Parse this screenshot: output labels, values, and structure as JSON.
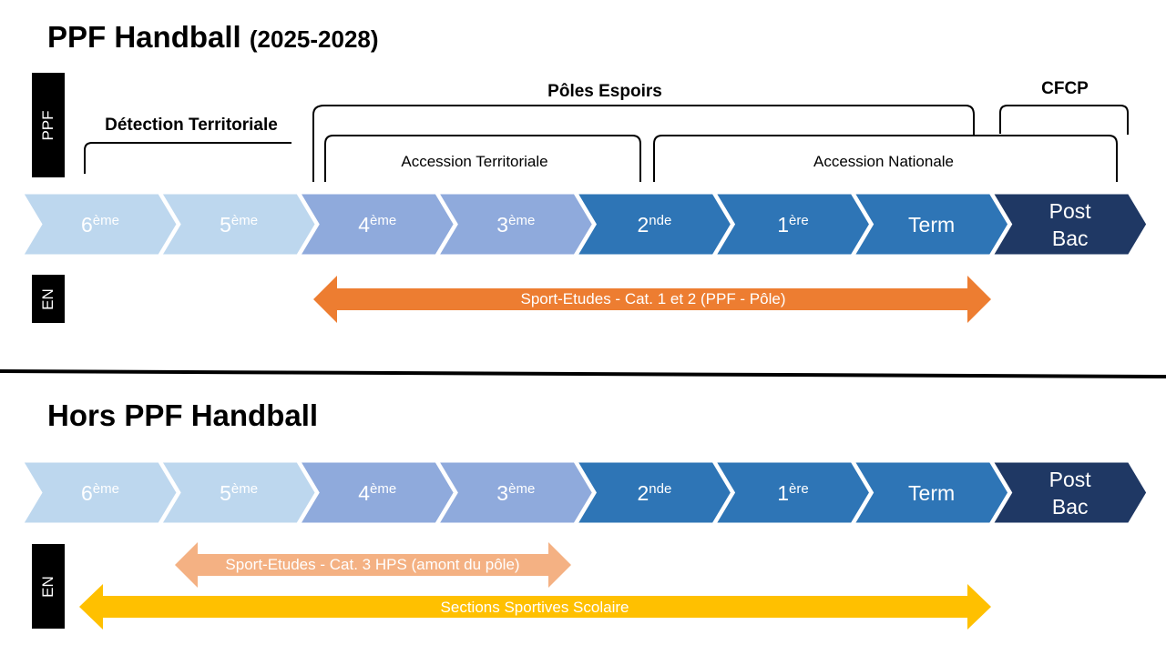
{
  "section1": {
    "title": "PPF Handball",
    "title_sub": "(2025-2028)",
    "sidebox_top": "PPF",
    "sidebox_bottom": "EN",
    "brackets": {
      "detection": "Détection Territoriale",
      "poles": "Pôles Espoirs",
      "cfcp": "CFCP",
      "accession_territoriale": "Accession Territoriale",
      "accession_nationale": "Accession Nationale"
    },
    "arrow_label": "Sport-Etudes  - Cat. 1 et 2 (PPF - Pôle)"
  },
  "section2": {
    "title": "Hors PPF Handball",
    "sidebox": "EN",
    "arrow1_label": "Sport-Etudes  - Cat. 3 HPS (amont du pôle)",
    "arrow2_label": "Sections Sportives Scolaire"
  },
  "grades": [
    {
      "main": "6",
      "sup": "ème"
    },
    {
      "main": "5",
      "sup": "ème"
    },
    {
      "main": "4",
      "sup": "ème"
    },
    {
      "main": "3",
      "sup": "ème"
    },
    {
      "main": "2",
      "sup": "nde"
    },
    {
      "main": "1",
      "sup": "ère"
    },
    {
      "main": "Term",
      "sup": ""
    },
    {
      "main": "Post\nBac",
      "sup": ""
    }
  ],
  "colors": {
    "grade_fills": [
      "#bdd7ee",
      "#bdd7ee",
      "#8faadc",
      "#8faadc",
      "#2e75b6",
      "#2e75b6",
      "#2e75b6",
      "#1f3864"
    ],
    "orange": "#ed7d31",
    "light_orange": "#f4b183",
    "yellow": "#ffc000"
  }
}
